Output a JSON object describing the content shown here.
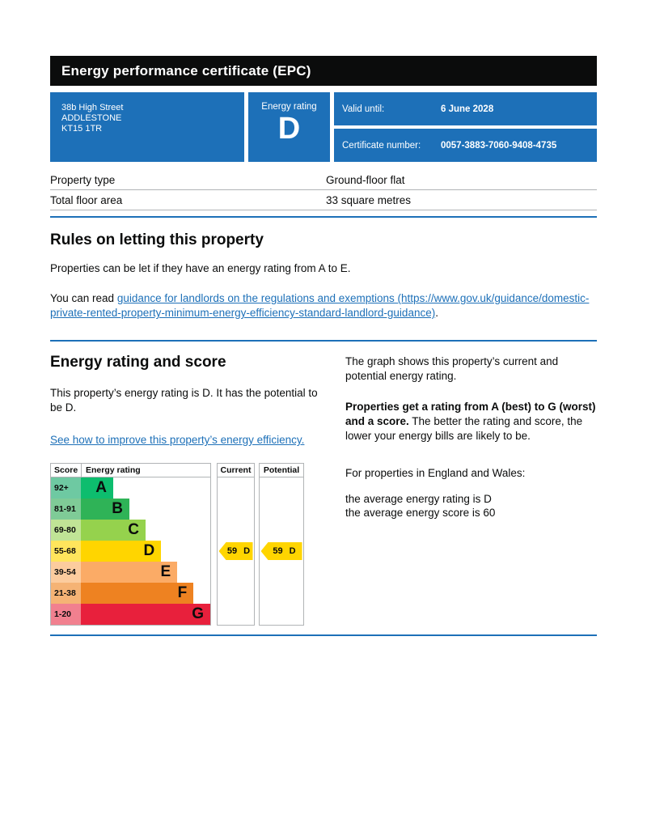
{
  "page": {
    "title_bar": "Energy performance certificate (EPC)"
  },
  "summary": {
    "address_lines": [
      "38b High Street",
      "ADDLESTONE",
      "KT15 1TR"
    ],
    "energy_rating_label": "Energy rating",
    "energy_rating": "D",
    "valid_until_label": "Valid until:",
    "valid_until_value": "6 June 2028",
    "certificate_number_label": "Certificate number:",
    "certificate_number_value": "0057-3883-7060-9408-4735"
  },
  "property_details": {
    "rows": [
      {
        "label": "Property type",
        "value": "Ground-floor flat"
      },
      {
        "label": "Total floor area",
        "value": "33 square metres"
      }
    ]
  },
  "rules_section": {
    "heading": "Rules on letting this property",
    "para1": "Properties can be let if they have an energy rating from A to E.",
    "para2_prefix": "You can read ",
    "para2_link": "guidance for landlords on the regulations and exemptions (https://www.gov.uk/guidance/domestic-private-rented-property-minimum-energy-efficiency-standard-landlord-guidance)",
    "para2_suffix": "."
  },
  "rating_section": {
    "heading": "Energy rating and score",
    "intro": "This property’s energy rating is D. It has the potential to be D.",
    "improve_link": "See how to improve this property’s energy efficiency.",
    "graph_intro": "The graph shows this property’s current and potential energy rating.",
    "explain_bold": "Properties get a rating from A (best) to G (worst) and a score.",
    "explain_rest": " The better the rating and score, the lower your energy bills are likely to be.",
    "england_wales": "For properties in England and Wales:",
    "average_rating_line": "the average energy rating is D",
    "average_score_line": "the average energy score is 60"
  },
  "chart_data": {
    "type": "bar",
    "title": "Energy rating and score",
    "headers": {
      "score": "Score",
      "rating": "Energy rating",
      "current": "Current",
      "potential": "Potential"
    },
    "bands": [
      {
        "score_range": "92+",
        "letter": "A",
        "bar_color": "#0dbd6e",
        "score_tint": "#6ec9a2",
        "width_pct": 25
      },
      {
        "score_range": "81-91",
        "letter": "B",
        "bar_color": "#2fb357",
        "score_tint": "#7fcb97",
        "width_pct": 37.5
      },
      {
        "score_range": "69-80",
        "letter": "C",
        "bar_color": "#95d24d",
        "score_tint": "#c0e496",
        "width_pct": 50
      },
      {
        "score_range": "55-68",
        "letter": "D",
        "bar_color": "#ffd500",
        "score_tint": "#ffe55c",
        "width_pct": 62
      },
      {
        "score_range": "39-54",
        "letter": "E",
        "bar_color": "#fbab66",
        "score_tint": "#fccc9e",
        "width_pct": 74.5
      },
      {
        "score_range": "21-38",
        "letter": "F",
        "bar_color": "#ee8221",
        "score_tint": "#f5b375",
        "width_pct": 87
      },
      {
        "score_range": "1-20",
        "letter": "G",
        "bar_color": "#e8203c",
        "score_tint": "#f1808f",
        "width_pct": 100
      }
    ],
    "current": {
      "score": 59,
      "band": "D",
      "label": "59 D",
      "band_index": 3
    },
    "potential": {
      "score": 59,
      "band": "D",
      "label": "59 D",
      "band_index": 3
    },
    "arrow_color": "#ffd500",
    "legend_position": "top",
    "axis_note": "Bands run from A (best, score 92+) to G (worst, score 1-20)"
  },
  "colors": {
    "gov_blue": "#1d70b8",
    "title_bar_black": "#0b0c0c",
    "border_grey": "#b1b4b6",
    "link_blue": "#1d70b8"
  }
}
